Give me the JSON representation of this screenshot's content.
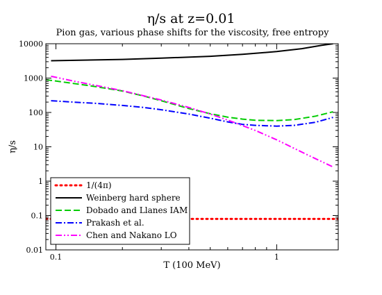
{
  "chart_data": {
    "type": "line",
    "title": "η/s  at z=0.01",
    "subtitle": "Pion gas, various phase shifts for the viscosity, free entropy",
    "xlabel": "T (100 MeV)",
    "ylabel": "η/s",
    "xscale": "log",
    "yscale": "log",
    "xlim": [
      0.09,
      1.9
    ],
    "ylim": [
      0.01,
      10000
    ],
    "x_ticks": [
      {
        "value": 0.1,
        "label": "0.1"
      },
      {
        "value": 1,
        "label": "1"
      }
    ],
    "y_ticks": [
      {
        "value": 0.01,
        "label": "0.01"
      },
      {
        "value": 0.1,
        "label": "0.1"
      },
      {
        "value": 1,
        "label": "1"
      },
      {
        "value": 10,
        "label": "10"
      },
      {
        "value": 100,
        "label": "100"
      },
      {
        "value": 1000,
        "label": "1000"
      },
      {
        "value": 10000,
        "label": "10000"
      }
    ],
    "grid": false,
    "legend_position": "bottom-left",
    "series": [
      {
        "name": "1/(4π)",
        "color": "#ff0000",
        "dash": "dotted",
        "x": [
          0.09,
          1.9
        ],
        "y": [
          0.0796,
          0.0796
        ]
      },
      {
        "name": "Weinberg hard sphere",
        "color": "#000000",
        "dash": "solid",
        "x": [
          0.095,
          0.2,
          0.3,
          0.5,
          0.7,
          1.0,
          1.3,
          1.6,
          1.8
        ],
        "y": [
          3200,
          3500,
          3800,
          4300,
          4900,
          5900,
          7200,
          9000,
          10000
        ]
      },
      {
        "name": "Dobado  and Llanes IAM",
        "color": "#00cc00",
        "dash": "dashed",
        "x": [
          0.09,
          0.12,
          0.15,
          0.2,
          0.25,
          0.3,
          0.4,
          0.5,
          0.6,
          0.7,
          0.8,
          1.0,
          1.2,
          1.5,
          1.8
        ],
        "y": [
          900,
          700,
          570,
          420,
          300,
          220,
          130,
          92,
          73,
          64,
          59,
          58,
          62,
          78,
          105
        ]
      },
      {
        "name": "Prakash et al.",
        "color": "#0000ff",
        "dash": "dash-dot",
        "x": [
          0.095,
          0.12,
          0.15,
          0.2,
          0.25,
          0.3,
          0.4,
          0.5,
          0.6,
          0.7,
          0.8,
          1.0,
          1.2,
          1.5,
          1.8
        ],
        "y": [
          220,
          200,
          185,
          160,
          140,
          120,
          90,
          68,
          53,
          45,
          42,
          40,
          42,
          52,
          72
        ]
      },
      {
        "name": "Chen and Nakano LO",
        "color": "#ff00ff",
        "dash": "dash-dot-dot",
        "x": [
          0.095,
          0.12,
          0.15,
          0.2,
          0.3,
          0.4,
          0.5,
          0.6,
          0.8,
          1.0,
          1.2,
          1.5,
          1.8
        ],
        "y": [
          1130,
          820,
          620,
          430,
          230,
          140,
          90,
          60,
          30,
          16,
          9,
          4.5,
          2.6
        ]
      }
    ]
  }
}
